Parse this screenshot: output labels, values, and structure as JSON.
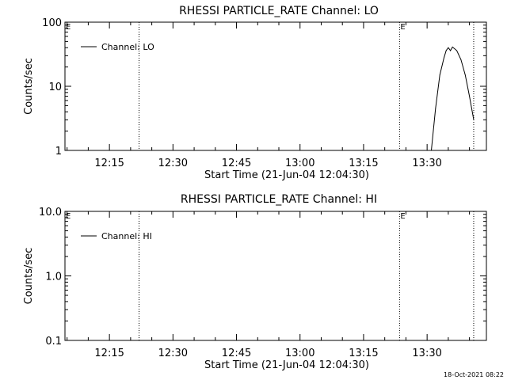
{
  "footer_date": "18-Oct-2021 08:22",
  "chart_data": [
    {
      "type": "line",
      "title": "RHESSI  PARTICLE_RATE  Channel:  LO",
      "xlabel": "Start Time (21-Jun-04 12:04:30)",
      "ylabel": "Counts/sec",
      "yscale": "log",
      "ylim": [
        1,
        100
      ],
      "y_ticks": [
        "1",
        "10",
        "100"
      ],
      "x_ticks": [
        "12:15",
        "12:30",
        "12:45",
        "13:00",
        "13:15",
        "13:30"
      ],
      "legend": {
        "label": "Channel: LO",
        "placement": "top-left"
      },
      "markers": [
        {
          "time": "12:22:00",
          "label": ""
        },
        {
          "time": "13:23:30",
          "label": "E"
        },
        {
          "time": "13:41:00",
          "label": ""
        }
      ],
      "corner_label": "E",
      "series": [
        {
          "name": "Channel: LO",
          "x": [
            "13:31:00",
            "13:32:00",
            "13:33:00",
            "13:34:00",
            "13:34:30",
            "13:35:00",
            "13:35:30",
            "13:36:00",
            "13:37:00",
            "13:38:00",
            "13:39:00",
            "13:40:00",
            "13:41:00"
          ],
          "y": [
            1,
            4.5,
            15,
            28,
            36,
            40,
            36,
            41,
            36,
            26,
            15,
            7,
            3
          ]
        }
      ]
    },
    {
      "type": "line",
      "title": "RHESSI  PARTICLE_RATE  Channel:  HI",
      "xlabel": "Start Time (21-Jun-04 12:04:30)",
      "ylabel": "Counts/sec",
      "yscale": "log",
      "ylim": [
        0.1,
        10
      ],
      "y_ticks": [
        "0.1",
        "1.0",
        "10.0"
      ],
      "x_ticks": [
        "12:15",
        "12:30",
        "12:45",
        "13:00",
        "13:15",
        "13:30"
      ],
      "legend": {
        "label": "Channel: HI",
        "placement": "top-left"
      },
      "markers": [
        {
          "time": "12:22:00",
          "label": ""
        },
        {
          "time": "13:23:30",
          "label": "E"
        },
        {
          "time": "13:41:00",
          "label": ""
        }
      ],
      "corner_label": "E",
      "series": [
        {
          "name": "Channel: HI",
          "x": [],
          "y": []
        }
      ]
    }
  ]
}
